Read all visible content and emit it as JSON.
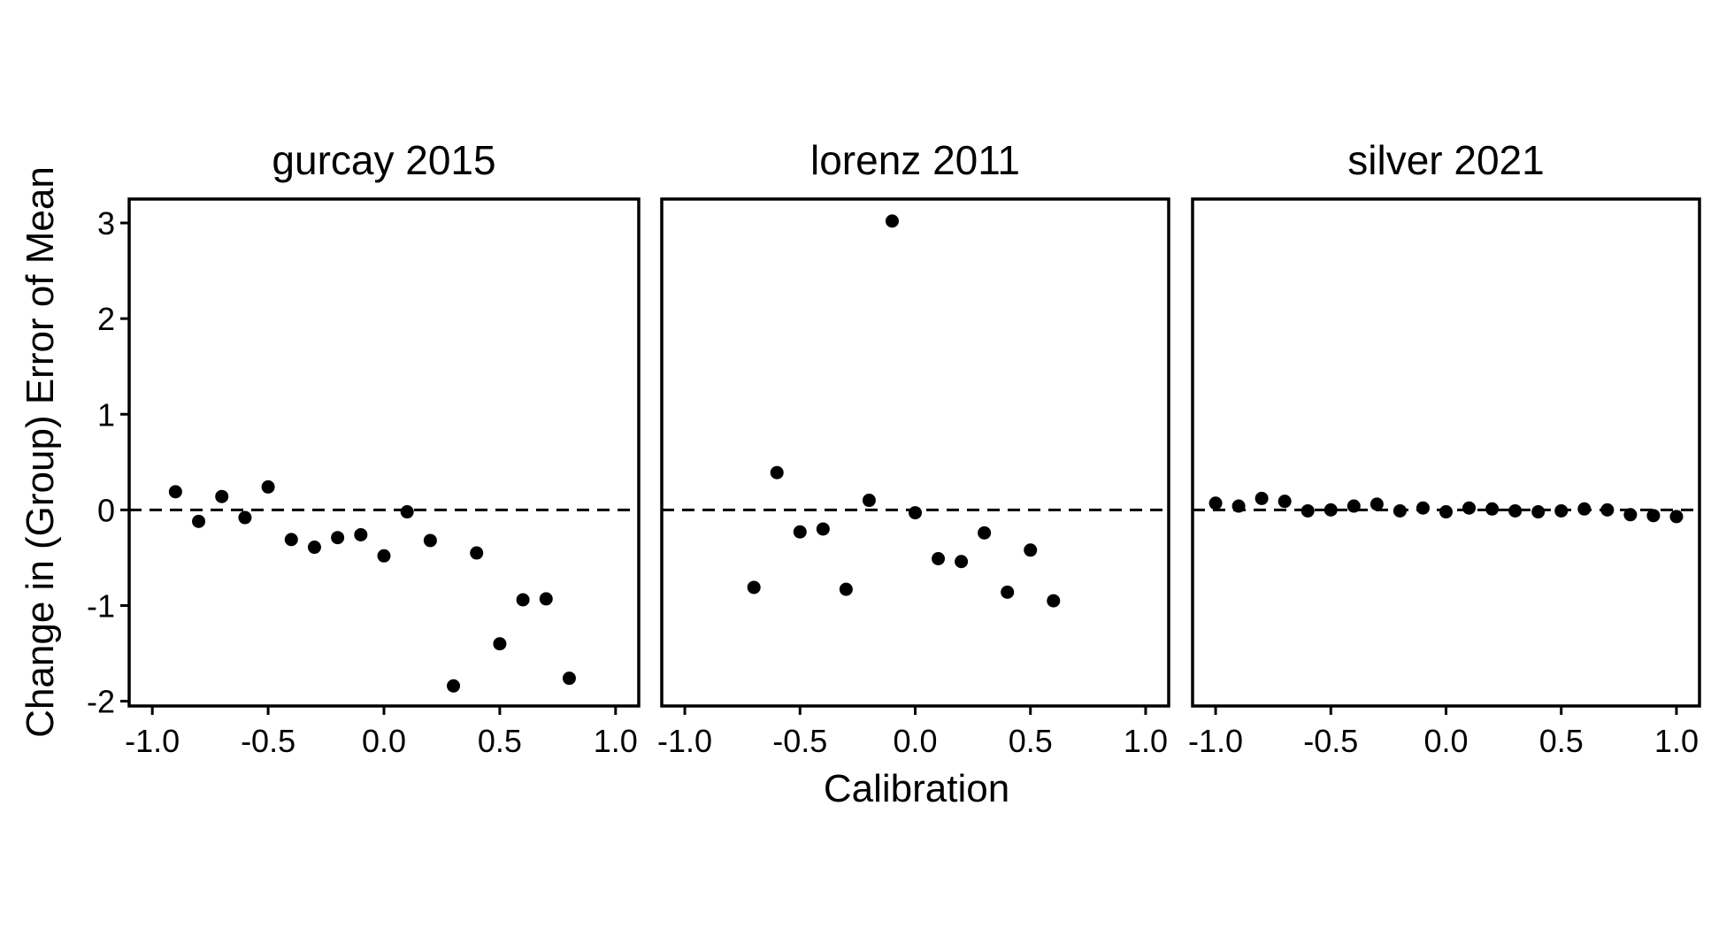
{
  "chart_data": {
    "type": "scatter",
    "xlabel": "Calibration",
    "ylabel": "Change in (Group) Error of Mean",
    "xlim": [
      -1.1,
      1.1
    ],
    "ylim": [
      -2.05,
      3.25
    ],
    "x_ticks": [
      -1.0,
      -0.5,
      0.0,
      0.5,
      1.0
    ],
    "x_tick_labels": [
      "-1.0",
      "-0.5",
      "0.0",
      "0.5",
      "1.0"
    ],
    "y_ticks": [
      -2,
      -1,
      0,
      1,
      2,
      3
    ],
    "y_tick_labels": [
      "-2",
      "-1",
      "0",
      "1",
      "2",
      "3"
    ],
    "reference_line": {
      "y": 0,
      "style": "dashed"
    },
    "grid": false,
    "point_color": "#000000",
    "facets": [
      {
        "title": "gurcay 2015",
        "points": [
          {
            "x": -0.9,
            "y": 0.19
          },
          {
            "x": -0.8,
            "y": -0.12
          },
          {
            "x": -0.7,
            "y": 0.14
          },
          {
            "x": -0.6,
            "y": -0.08
          },
          {
            "x": -0.5,
            "y": 0.24
          },
          {
            "x": -0.4,
            "y": -0.31
          },
          {
            "x": -0.3,
            "y": -0.39
          },
          {
            "x": -0.2,
            "y": -0.29
          },
          {
            "x": -0.1,
            "y": -0.26
          },
          {
            "x": 0.0,
            "y": -0.48
          },
          {
            "x": 0.1,
            "y": -0.02
          },
          {
            "x": 0.2,
            "y": -0.32
          },
          {
            "x": 0.3,
            "y": -1.84
          },
          {
            "x": 0.4,
            "y": -0.45
          },
          {
            "x": 0.5,
            "y": -1.4
          },
          {
            "x": 0.6,
            "y": -0.94
          },
          {
            "x": 0.7,
            "y": -0.93
          },
          {
            "x": 0.8,
            "y": -1.76
          }
        ]
      },
      {
        "title": "lorenz 2011",
        "points": [
          {
            "x": -0.7,
            "y": -0.81
          },
          {
            "x": -0.6,
            "y": 0.39
          },
          {
            "x": -0.5,
            "y": -0.23
          },
          {
            "x": -0.4,
            "y": -0.2
          },
          {
            "x": -0.3,
            "y": -0.83
          },
          {
            "x": -0.2,
            "y": 0.1
          },
          {
            "x": -0.1,
            "y": 3.02
          },
          {
            "x": 0.0,
            "y": -0.03
          },
          {
            "x": 0.1,
            "y": -0.51
          },
          {
            "x": 0.2,
            "y": -0.54
          },
          {
            "x": 0.3,
            "y": -0.24
          },
          {
            "x": 0.4,
            "y": -0.86
          },
          {
            "x": 0.5,
            "y": -0.42
          },
          {
            "x": 0.6,
            "y": -0.95
          }
        ]
      },
      {
        "title": "silver 2021",
        "points": [
          {
            "x": -1.0,
            "y": 0.07
          },
          {
            "x": -0.9,
            "y": 0.04
          },
          {
            "x": -0.8,
            "y": 0.12
          },
          {
            "x": -0.7,
            "y": 0.09
          },
          {
            "x": -0.6,
            "y": -0.01
          },
          {
            "x": -0.5,
            "y": 0.0
          },
          {
            "x": -0.4,
            "y": 0.04
          },
          {
            "x": -0.3,
            "y": 0.06
          },
          {
            "x": -0.2,
            "y": -0.01
          },
          {
            "x": -0.1,
            "y": 0.02
          },
          {
            "x": 0.0,
            "y": -0.02
          },
          {
            "x": 0.1,
            "y": 0.02
          },
          {
            "x": 0.2,
            "y": 0.01
          },
          {
            "x": 0.3,
            "y": -0.01
          },
          {
            "x": 0.4,
            "y": -0.02
          },
          {
            "x": 0.5,
            "y": -0.01
          },
          {
            "x": 0.6,
            "y": 0.01
          },
          {
            "x": 0.7,
            "y": 0.0
          },
          {
            "x": 0.8,
            "y": -0.05
          },
          {
            "x": 0.9,
            "y": -0.06
          },
          {
            "x": 1.0,
            "y": -0.07
          }
        ]
      }
    ]
  }
}
